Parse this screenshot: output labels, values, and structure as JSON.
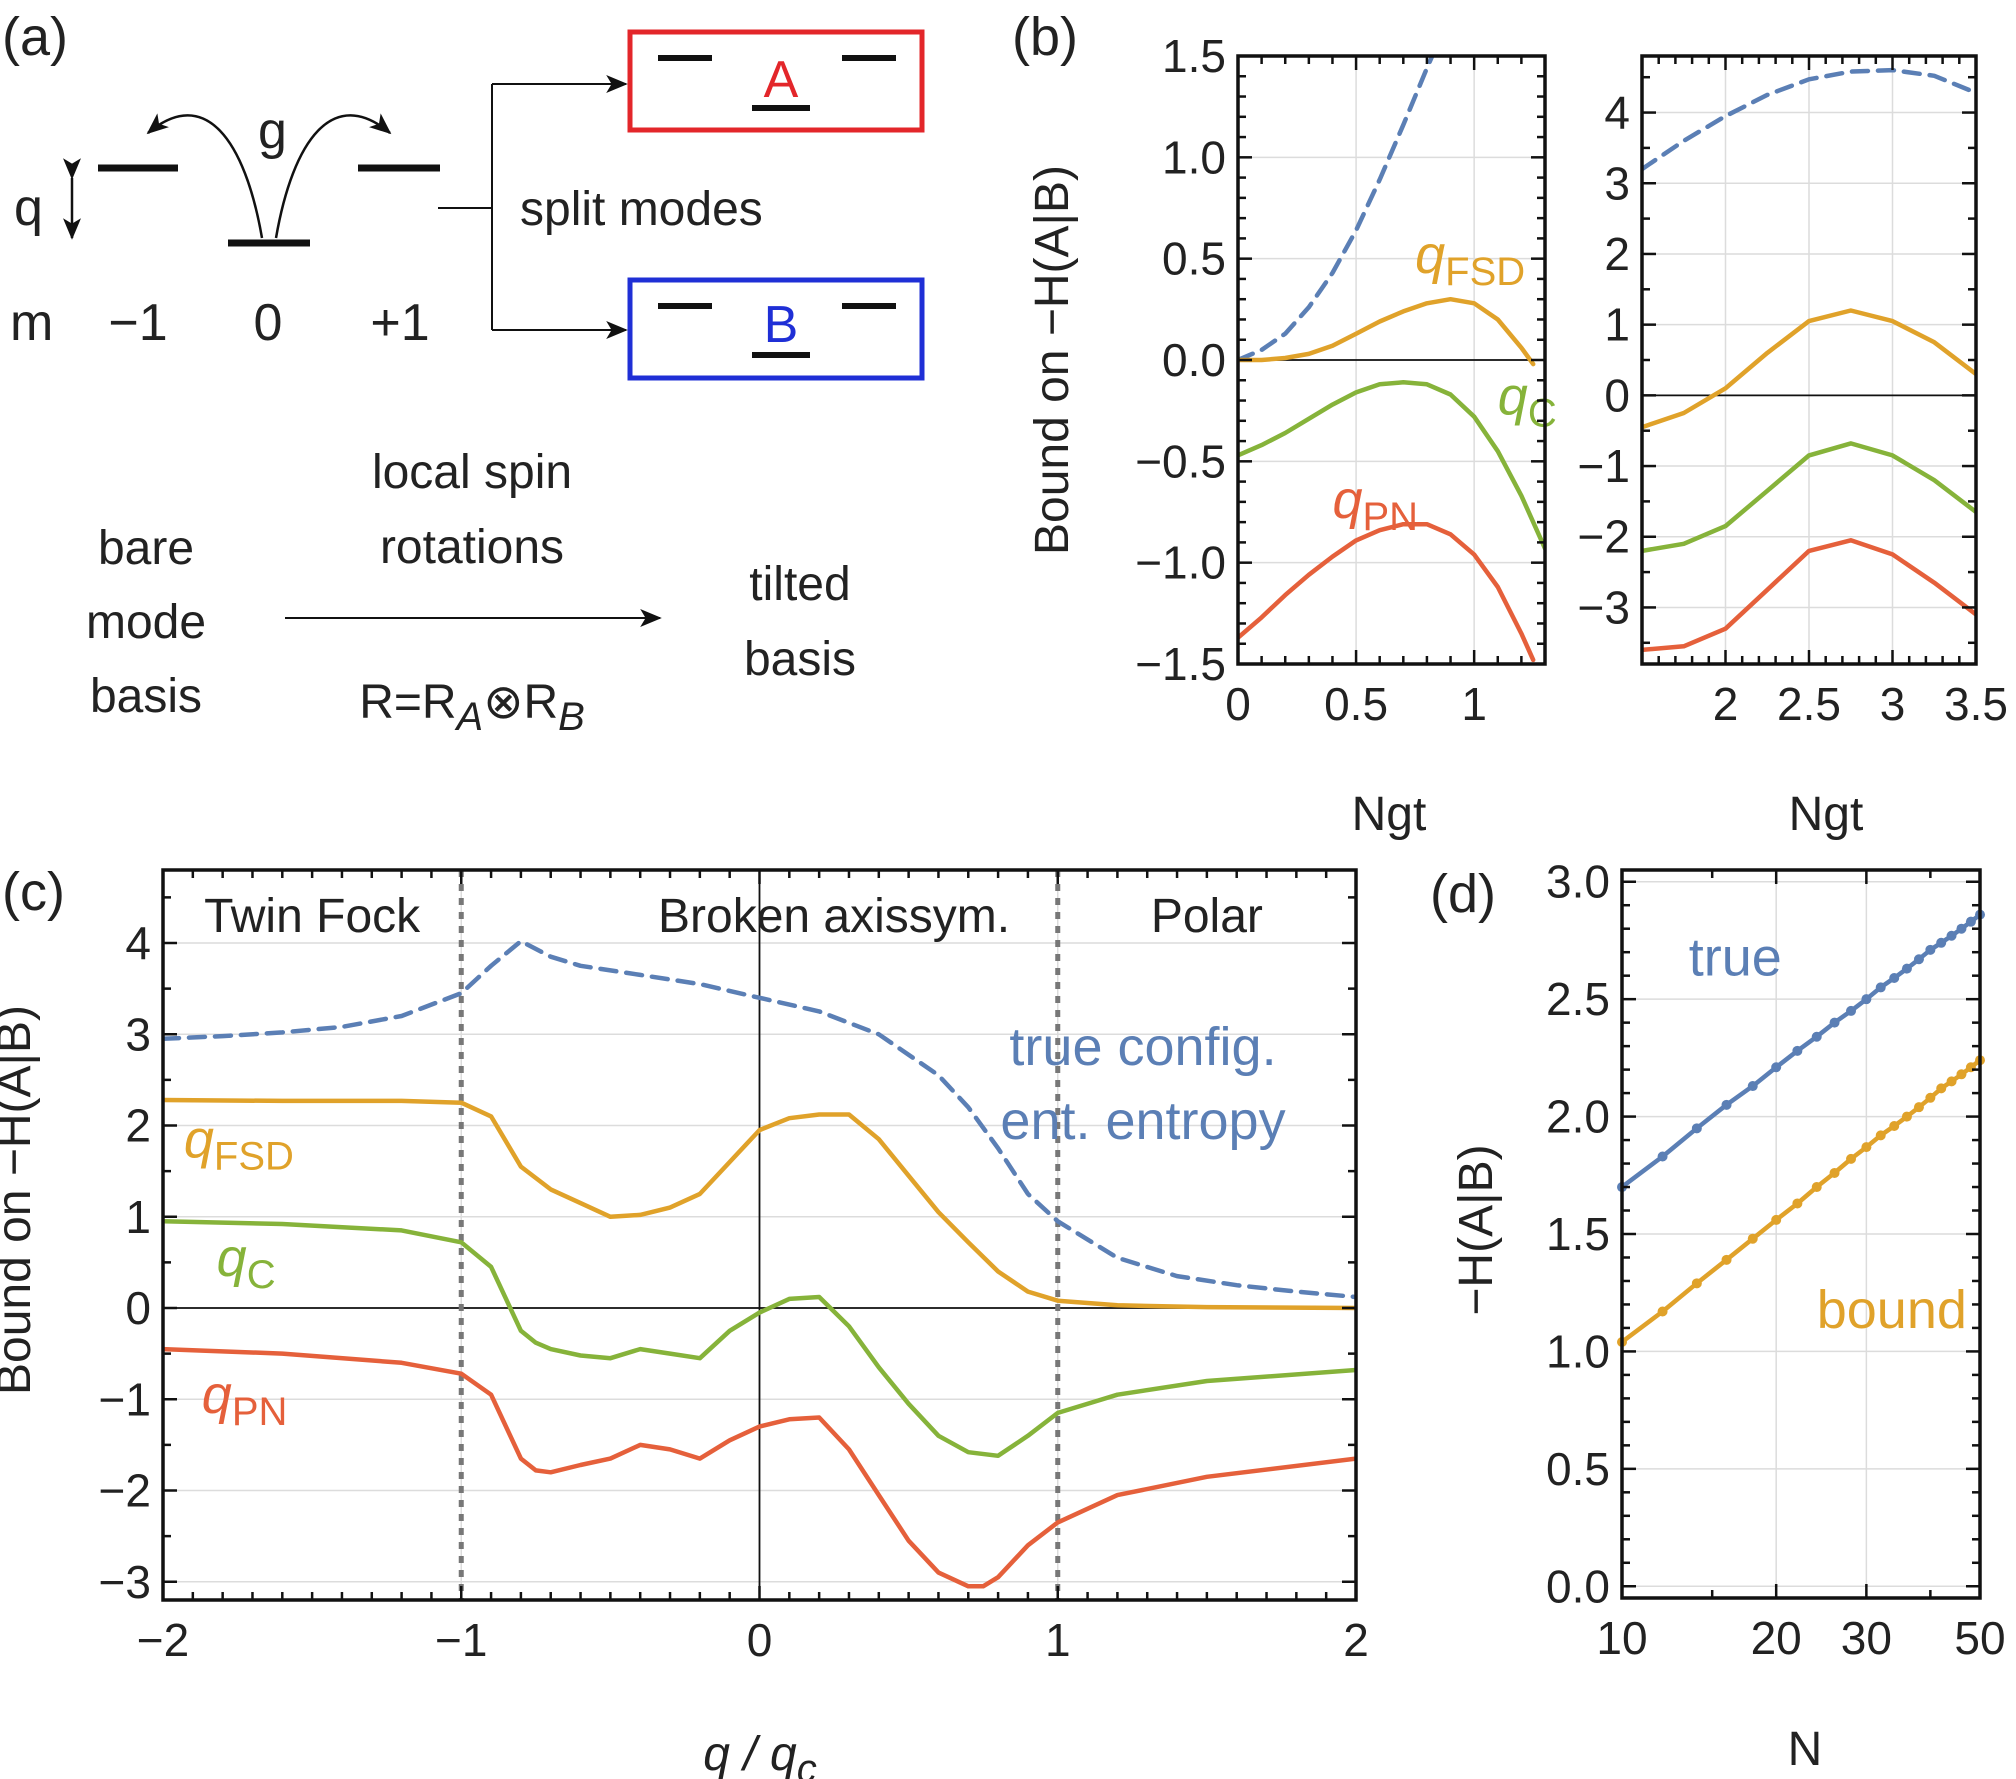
{
  "colors": {
    "true_blue": "#5b7fb5",
    "fsd_orange": "#e0a22a",
    "c_green": "#86b33a",
    "pn_red": "#e5603b",
    "box_red": "#e3262a",
    "box_blue": "#1f2fd6",
    "axis_black": "#111111"
  },
  "panel_a": {
    "label": "(a)",
    "coupling": "g",
    "q_symbol": "q",
    "m_symbol": "m",
    "levels": [
      "−1",
      "0",
      "+1"
    ],
    "split_label": "split modes",
    "mode_a": "A",
    "mode_b": "B",
    "bare_basis": [
      "bare",
      "mode",
      "basis"
    ],
    "rotation_label": [
      "local spin",
      "rotations"
    ],
    "rotation_formula": "R=R",
    "rotation_sub_a": "A",
    "rotation_otimes": "⊗R",
    "rotation_sub_b": "B",
    "tilted_basis": [
      "tilted",
      "basis"
    ]
  },
  "chart_data": [
    {
      "panel": "(b)-left",
      "label": "(b)",
      "type": "line",
      "xlabel": "Ngt",
      "ylabel": "Bound on −H(A|B)",
      "xlim": [
        0,
        1.3
      ],
      "ylim": [
        -1.5,
        1.5
      ],
      "xticks": [
        0,
        0.5,
        1
      ],
      "xtick_labels": [
        "0",
        "0.5",
        "1"
      ],
      "yticks": [
        -1.5,
        -1.0,
        -0.5,
        0.0,
        0.5,
        1.0,
        1.5
      ],
      "ytick_labels": [
        "−1.5",
        "−1.0",
        "−0.5",
        "0.0",
        "0.5",
        "1.0",
        "1.5"
      ],
      "grid": true,
      "series": [
        {
          "key": "true",
          "style": "dashed",
          "x": [
            0,
            0.1,
            0.2,
            0.3,
            0.4,
            0.5,
            0.6,
            0.7,
            0.8,
            0.83
          ],
          "y": [
            0.0,
            0.05,
            0.13,
            0.26,
            0.43,
            0.64,
            0.89,
            1.16,
            1.44,
            1.52
          ]
        },
        {
          "key": "fsd",
          "name": "q",
          "sub": "FSD",
          "label_at": [
            0.75,
            0.43
          ],
          "x": [
            0,
            0.1,
            0.2,
            0.3,
            0.4,
            0.5,
            0.6,
            0.7,
            0.8,
            0.9,
            1.0,
            1.1,
            1.2,
            1.25
          ],
          "y": [
            0.0,
            0.0,
            0.01,
            0.03,
            0.07,
            0.13,
            0.19,
            0.24,
            0.28,
            0.3,
            0.28,
            0.2,
            0.06,
            -0.02
          ]
        },
        {
          "key": "c",
          "name": "q",
          "sub": "C",
          "label_at": [
            1.1,
            -0.27
          ],
          "x": [
            0,
            0.1,
            0.2,
            0.3,
            0.4,
            0.5,
            0.6,
            0.7,
            0.8,
            0.9,
            1.0,
            1.1,
            1.2,
            1.3
          ],
          "y": [
            -0.47,
            -0.42,
            -0.36,
            -0.29,
            -0.22,
            -0.16,
            -0.12,
            -0.11,
            -0.12,
            -0.17,
            -0.28,
            -0.45,
            -0.67,
            -0.93
          ]
        },
        {
          "key": "pn",
          "name": "q",
          "sub": "PN",
          "label_at": [
            0.4,
            -0.78
          ],
          "x": [
            0,
            0.1,
            0.2,
            0.3,
            0.4,
            0.5,
            0.6,
            0.7,
            0.8,
            0.9,
            1.0,
            1.1,
            1.2,
            1.25
          ],
          "y": [
            -1.37,
            -1.27,
            -1.16,
            -1.06,
            -0.97,
            -0.89,
            -0.84,
            -0.81,
            -0.81,
            -0.86,
            -0.96,
            -1.12,
            -1.35,
            -1.48
          ]
        }
      ]
    },
    {
      "panel": "(b)-right",
      "type": "line",
      "xlabel": "Ngt",
      "ylabel": "",
      "xlim": [
        1.5,
        3.5
      ],
      "ylim": [
        -3.8,
        4.8
      ],
      "xticks": [
        2,
        2.5,
        3,
        3.5
      ],
      "xtick_labels": [
        "2",
        "2.5",
        "3",
        "3.5"
      ],
      "yticks": [
        -3,
        -2,
        -1,
        0,
        1,
        2,
        3,
        4
      ],
      "ytick_labels": [
        "−3",
        "−2",
        "−1",
        "0",
        "1",
        "2",
        "3",
        "4"
      ],
      "grid": true,
      "series": [
        {
          "key": "true",
          "style": "dashed",
          "x": [
            1.5,
            1.75,
            2.0,
            2.25,
            2.5,
            2.75,
            3.0,
            3.25,
            3.5
          ],
          "y": [
            3.2,
            3.6,
            3.95,
            4.25,
            4.47,
            4.58,
            4.6,
            4.52,
            4.28
          ]
        },
        {
          "key": "fsd",
          "x": [
            1.5,
            1.75,
            2.0,
            2.25,
            2.5,
            2.75,
            3.0,
            3.25,
            3.5
          ],
          "y": [
            -0.45,
            -0.25,
            0.1,
            0.6,
            1.05,
            1.2,
            1.05,
            0.75,
            0.3
          ]
        },
        {
          "key": "c",
          "x": [
            1.5,
            1.75,
            2.0,
            2.25,
            2.5,
            2.75,
            3.0,
            3.25,
            3.5
          ],
          "y": [
            -2.2,
            -2.1,
            -1.85,
            -1.35,
            -0.85,
            -0.68,
            -0.85,
            -1.2,
            -1.65
          ]
        },
        {
          "key": "pn",
          "x": [
            1.5,
            1.75,
            2.0,
            2.25,
            2.5,
            2.75,
            3.0,
            3.25,
            3.5
          ],
          "y": [
            -3.6,
            -3.55,
            -3.3,
            -2.75,
            -2.2,
            -2.05,
            -2.25,
            -2.65,
            -3.1
          ]
        }
      ]
    },
    {
      "panel": "(c)",
      "label": "(c)",
      "type": "line",
      "xlabel": "q / q",
      "xlabel_sub": "c",
      "ylabel": "Bound on −H(A|B)",
      "xlim": [
        -2,
        2
      ],
      "ylim": [
        -3.2,
        4.8
      ],
      "xticks": [
        -2,
        -1,
        0,
        1,
        2
      ],
      "xtick_labels": [
        "−2",
        "−1",
        "0",
        "1",
        "2"
      ],
      "yticks": [
        -3,
        -2,
        -1,
        0,
        1,
        2,
        3,
        4
      ],
      "ytick_labels": [
        "−3",
        "−2",
        "−1",
        "0",
        "1",
        "2",
        "3",
        "4"
      ],
      "grid": true,
      "phase_boundaries": [
        -1,
        1
      ],
      "regions": [
        {
          "text": "Twin Fock",
          "x": -1.5
        },
        {
          "text": "Broken axissym.",
          "x": 0.25
        },
        {
          "text": "Polar",
          "x": 1.5
        }
      ],
      "true_label": [
        "true config.",
        "ent. entropy"
      ],
      "series": [
        {
          "key": "true",
          "style": "dashed",
          "x": [
            -2.0,
            -1.8,
            -1.6,
            -1.4,
            -1.2,
            -1.0,
            -0.9,
            -0.8,
            -0.7,
            -0.6,
            -0.4,
            -0.2,
            0.0,
            0.2,
            0.4,
            0.6,
            0.7,
            0.8,
            0.9,
            1.0,
            1.2,
            1.4,
            1.6,
            1.8,
            2.0
          ],
          "y": [
            2.95,
            2.98,
            3.02,
            3.08,
            3.2,
            3.45,
            3.75,
            4.02,
            3.85,
            3.75,
            3.65,
            3.55,
            3.4,
            3.25,
            3.0,
            2.55,
            2.2,
            1.75,
            1.25,
            0.95,
            0.55,
            0.35,
            0.25,
            0.18,
            0.12
          ]
        },
        {
          "key": "fsd",
          "name": "q",
          "sub": "FSD",
          "label_at": [
            -1.93,
            1.65
          ],
          "x": [
            -2.0,
            -1.6,
            -1.2,
            -1.0,
            -0.9,
            -0.8,
            -0.7,
            -0.6,
            -0.5,
            -0.4,
            -0.3,
            -0.2,
            -0.1,
            0.0,
            0.1,
            0.2,
            0.3,
            0.4,
            0.5,
            0.6,
            0.7,
            0.8,
            0.9,
            1.0,
            1.2,
            1.5,
            2.0
          ],
          "y": [
            2.28,
            2.27,
            2.27,
            2.25,
            2.1,
            1.55,
            1.3,
            1.15,
            1.0,
            1.02,
            1.1,
            1.25,
            1.6,
            1.95,
            2.08,
            2.12,
            2.12,
            1.85,
            1.45,
            1.05,
            0.72,
            0.4,
            0.18,
            0.08,
            0.03,
            0.01,
            0.0
          ]
        },
        {
          "key": "c",
          "name": "q",
          "sub": "C",
          "label_at": [
            -1.82,
            0.35
          ],
          "x": [
            -2.0,
            -1.6,
            -1.2,
            -1.0,
            -0.9,
            -0.8,
            -0.75,
            -0.7,
            -0.6,
            -0.5,
            -0.4,
            -0.3,
            -0.2,
            -0.1,
            0.0,
            0.1,
            0.2,
            0.3,
            0.4,
            0.5,
            0.6,
            0.7,
            0.8,
            0.9,
            1.0,
            1.2,
            1.5,
            2.0
          ],
          "y": [
            0.95,
            0.92,
            0.85,
            0.72,
            0.45,
            -0.25,
            -0.38,
            -0.45,
            -0.52,
            -0.55,
            -0.45,
            -0.5,
            -0.55,
            -0.25,
            -0.05,
            0.1,
            0.12,
            -0.2,
            -0.65,
            -1.05,
            -1.4,
            -1.58,
            -1.62,
            -1.4,
            -1.15,
            -0.95,
            -0.8,
            -0.68
          ]
        },
        {
          "key": "pn",
          "name": "q",
          "sub": "PN",
          "label_at": [
            -1.87,
            -1.15
          ],
          "x": [
            -2.0,
            -1.6,
            -1.2,
            -1.0,
            -0.9,
            -0.8,
            -0.75,
            -0.7,
            -0.6,
            -0.5,
            -0.4,
            -0.3,
            -0.2,
            -0.1,
            0.0,
            0.1,
            0.2,
            0.3,
            0.4,
            0.5,
            0.6,
            0.7,
            0.75,
            0.8,
            0.9,
            1.0,
            1.2,
            1.5,
            2.0
          ],
          "y": [
            -0.45,
            -0.5,
            -0.6,
            -0.72,
            -0.95,
            -1.65,
            -1.78,
            -1.8,
            -1.72,
            -1.65,
            -1.5,
            -1.55,
            -1.65,
            -1.45,
            -1.3,
            -1.22,
            -1.2,
            -1.55,
            -2.05,
            -2.55,
            -2.9,
            -3.05,
            -3.05,
            -2.95,
            -2.6,
            -2.35,
            -2.05,
            -1.85,
            -1.65
          ]
        }
      ]
    },
    {
      "panel": "(d)",
      "label": "(d)",
      "type": "line",
      "xlabel": "N",
      "ylabel": "−H(A|B)",
      "xscale": "log",
      "xlim": [
        10,
        50
      ],
      "ylim": [
        -0.05,
        3.05
      ],
      "xticks": [
        10,
        20,
        30,
        50
      ],
      "xtick_labels": [
        "10",
        "20",
        "30",
        "50"
      ],
      "yticks": [
        0.0,
        0.5,
        1.0,
        1.5,
        2.0,
        2.5,
        3.0
      ],
      "ytick_labels": [
        "0.0",
        "0.5",
        "1.0",
        "1.5",
        "2.0",
        "2.5",
        "3.0"
      ],
      "grid": true,
      "series": [
        {
          "key": "true",
          "name": "true",
          "label_at": [
            13.5,
            2.6
          ],
          "markers": true,
          "x": [
            10,
            12,
            14,
            16,
            18,
            20,
            22,
            24,
            26,
            28,
            30,
            32,
            34,
            36,
            38,
            40,
            42,
            44,
            46,
            48,
            50
          ],
          "y": [
            1.7,
            1.83,
            1.95,
            2.05,
            2.13,
            2.21,
            2.28,
            2.34,
            2.4,
            2.45,
            2.5,
            2.55,
            2.59,
            2.63,
            2.67,
            2.71,
            2.74,
            2.77,
            2.8,
            2.83,
            2.86
          ]
        },
        {
          "key": "fsd",
          "name": "bound",
          "label_at": [
            24,
            1.1
          ],
          "markers": true,
          "x": [
            10,
            12,
            14,
            16,
            18,
            20,
            22,
            24,
            26,
            28,
            30,
            32,
            34,
            36,
            38,
            40,
            42,
            44,
            46,
            48,
            50
          ],
          "y": [
            1.04,
            1.17,
            1.29,
            1.39,
            1.48,
            1.56,
            1.63,
            1.7,
            1.76,
            1.82,
            1.87,
            1.92,
            1.96,
            2.0,
            2.04,
            2.08,
            2.12,
            2.15,
            2.18,
            2.21,
            2.24
          ]
        }
      ]
    }
  ]
}
